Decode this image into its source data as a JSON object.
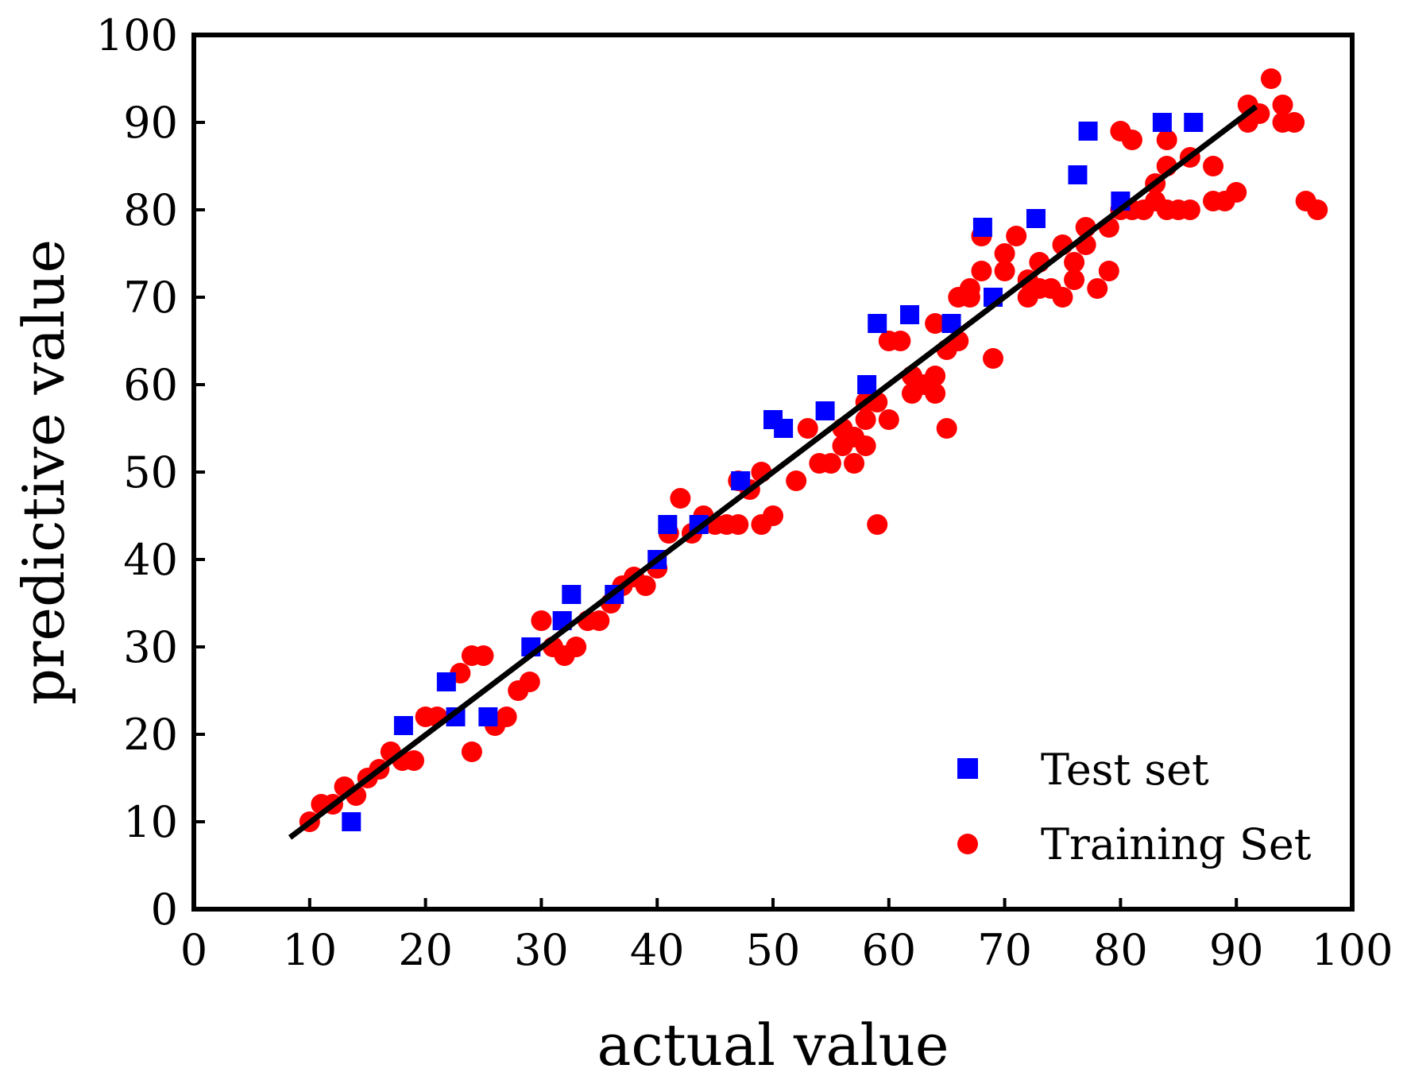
{
  "chart_data": {
    "type": "scatter",
    "title": "",
    "xlabel": "actual value",
    "ylabel": "predictive value",
    "xlim": [
      0,
      100
    ],
    "ylim": [
      0,
      100
    ],
    "xticks": [
      0,
      10,
      20,
      30,
      40,
      50,
      60,
      70,
      80,
      90,
      100
    ],
    "yticks": [
      0,
      10,
      20,
      30,
      40,
      50,
      60,
      70,
      80,
      90,
      100
    ],
    "grid": false,
    "legend_position": "bottom-right",
    "fit_line": {
      "name": "fit",
      "color": "#000000",
      "x": [
        8.3,
        91.7
      ],
      "y": [
        8.2,
        91.8
      ]
    },
    "series": [
      {
        "name": "Test set",
        "marker": "square",
        "color": "#0000ff",
        "points": [
          [
            13.6,
            10
          ],
          [
            18.1,
            21
          ],
          [
            21.8,
            26
          ],
          [
            22.6,
            22
          ],
          [
            25.4,
            22
          ],
          [
            29.1,
            30
          ],
          [
            31.8,
            33
          ],
          [
            32.6,
            36
          ],
          [
            36.3,
            36
          ],
          [
            40.0,
            40
          ],
          [
            40.9,
            44
          ],
          [
            43.6,
            44
          ],
          [
            47.2,
            49
          ],
          [
            50.0,
            56
          ],
          [
            50.9,
            55
          ],
          [
            54.5,
            57
          ],
          [
            58.1,
            60
          ],
          [
            59.0,
            67
          ],
          [
            61.8,
            68
          ],
          [
            65.4,
            67
          ],
          [
            68.1,
            78
          ],
          [
            69.0,
            70
          ],
          [
            72.7,
            79
          ],
          [
            76.3,
            84
          ],
          [
            77.2,
            89
          ],
          [
            80.0,
            81
          ],
          [
            83.6,
            90
          ],
          [
            86.3,
            90
          ]
        ]
      },
      {
        "name": "Training Set",
        "marker": "circle",
        "color": "#ff0000",
        "points": [
          [
            10,
            10
          ],
          [
            11,
            12
          ],
          [
            12,
            12
          ],
          [
            13,
            14
          ],
          [
            14,
            13
          ],
          [
            15,
            15
          ],
          [
            16,
            16
          ],
          [
            17,
            18
          ],
          [
            18,
            17
          ],
          [
            19,
            17
          ],
          [
            20,
            22
          ],
          [
            21,
            22
          ],
          [
            23,
            27
          ],
          [
            24,
            29
          ],
          [
            24,
            18
          ],
          [
            25,
            29
          ],
          [
            26,
            21
          ],
          [
            27,
            22
          ],
          [
            28,
            25
          ],
          [
            29,
            26
          ],
          [
            30,
            33
          ],
          [
            31,
            30
          ],
          [
            32,
            29
          ],
          [
            33,
            30
          ],
          [
            34,
            33
          ],
          [
            35,
            33
          ],
          [
            36,
            35
          ],
          [
            37,
            37
          ],
          [
            38,
            38
          ],
          [
            39,
            37
          ],
          [
            40,
            39
          ],
          [
            41,
            43
          ],
          [
            42,
            47
          ],
          [
            43,
            43
          ],
          [
            44,
            45
          ],
          [
            45,
            44
          ],
          [
            46,
            44
          ],
          [
            47,
            44
          ],
          [
            47,
            49
          ],
          [
            48,
            48
          ],
          [
            49,
            50
          ],
          [
            49,
            44
          ],
          [
            50,
            45
          ],
          [
            52,
            49
          ],
          [
            53,
            55
          ],
          [
            54,
            51
          ],
          [
            55,
            51
          ],
          [
            56,
            53
          ],
          [
            56,
            55
          ],
          [
            57,
            51
          ],
          [
            57,
            54
          ],
          [
            58,
            53
          ],
          [
            58,
            56
          ],
          [
            58,
            58
          ],
          [
            59,
            44
          ],
          [
            59,
            58
          ],
          [
            60,
            56
          ],
          [
            60,
            65
          ],
          [
            61,
            65
          ],
          [
            62,
            59
          ],
          [
            62,
            61
          ],
          [
            63,
            60
          ],
          [
            64,
            61
          ],
          [
            64,
            59
          ],
          [
            64,
            67
          ],
          [
            65,
            55
          ],
          [
            65,
            64
          ],
          [
            66,
            65
          ],
          [
            66,
            70
          ],
          [
            67,
            71
          ],
          [
            67,
            70
          ],
          [
            68,
            73
          ],
          [
            68,
            77
          ],
          [
            69,
            63
          ],
          [
            70,
            73
          ],
          [
            70,
            75
          ],
          [
            71,
            77
          ],
          [
            72,
            70
          ],
          [
            72,
            72
          ],
          [
            73,
            74
          ],
          [
            73,
            71
          ],
          [
            74,
            71
          ],
          [
            75,
            70
          ],
          [
            75,
            76
          ],
          [
            76,
            72
          ],
          [
            76,
            74
          ],
          [
            77,
            76
          ],
          [
            77,
            78
          ],
          [
            78,
            71
          ],
          [
            79,
            73
          ],
          [
            79,
            78
          ],
          [
            80,
            89
          ],
          [
            80,
            80
          ],
          [
            81,
            88
          ],
          [
            81,
            80
          ],
          [
            82,
            80
          ],
          [
            83,
            81
          ],
          [
            83,
            83
          ],
          [
            84,
            80
          ],
          [
            84,
            85
          ],
          [
            84,
            88
          ],
          [
            85,
            80
          ],
          [
            86,
            80
          ],
          [
            86,
            86
          ],
          [
            88,
            85
          ],
          [
            88,
            81
          ],
          [
            89,
            81
          ],
          [
            90,
            82
          ],
          [
            91,
            92
          ],
          [
            91,
            90
          ],
          [
            92,
            91
          ],
          [
            93,
            95
          ],
          [
            94,
            92
          ],
          [
            94,
            90
          ],
          [
            95,
            90
          ],
          [
            96,
            81
          ],
          [
            97,
            80
          ]
        ]
      }
    ]
  }
}
